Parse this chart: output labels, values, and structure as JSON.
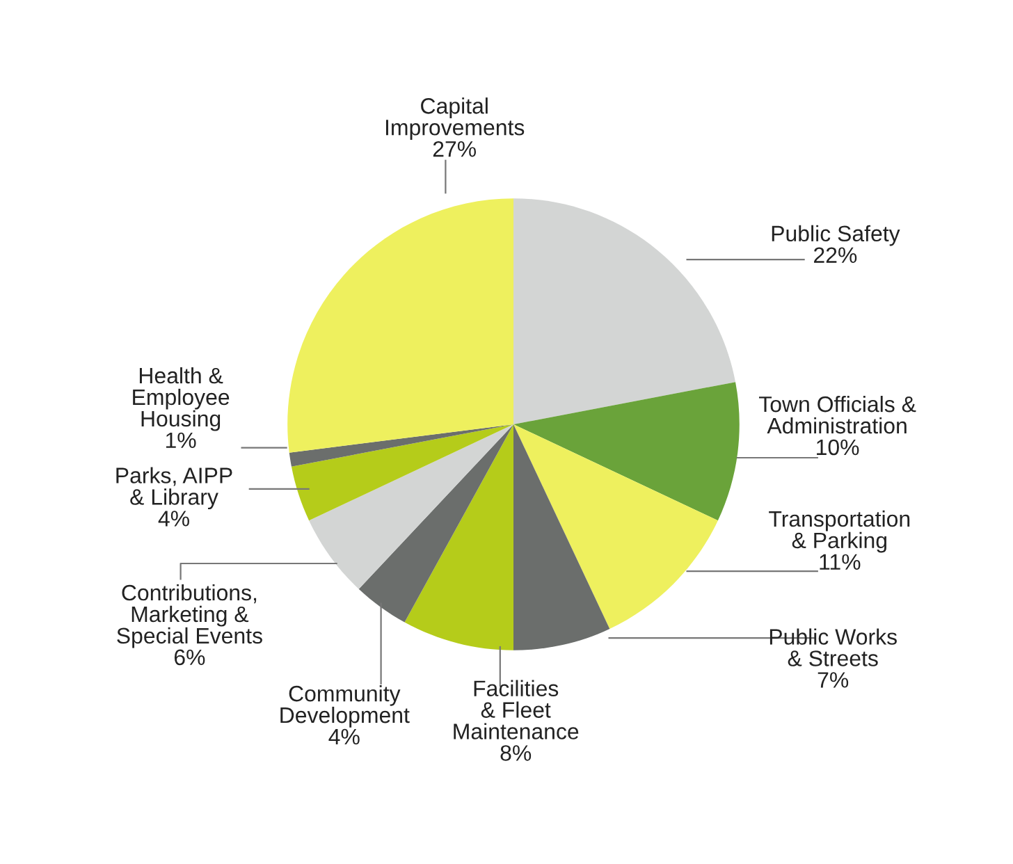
{
  "chart_data": {
    "type": "pie",
    "categories": [
      "Public Safety",
      "Town Officials &\nAdministration",
      "Transportation\n& Parking",
      "Public Works\n& Streets",
      "Facilities\n& Fleet\nMaintenance",
      "Community\nDevelopment",
      "Contributions,\nMarketing &\nSpecial Events",
      "Parks, AIPP\n& Library",
      "Health &\nEmployee\nHousing",
      "Capital\nImprovements"
    ],
    "values": [
      22,
      10,
      11,
      7,
      8,
      4,
      6,
      4,
      1,
      27
    ],
    "colors": [
      "#d3d5d4",
      "#6aa33a",
      "#eef05e",
      "#6b6e6c",
      "#b5cc1a",
      "#6b6e6c",
      "#d3d5d4",
      "#b5cc1a",
      "#6b6e6c",
      "#eef05e"
    ],
    "value_labels": [
      "22%",
      "10%",
      "11%",
      "7%",
      "8%",
      "4%",
      "6%",
      "4%",
      "1%",
      "27%"
    ]
  }
}
